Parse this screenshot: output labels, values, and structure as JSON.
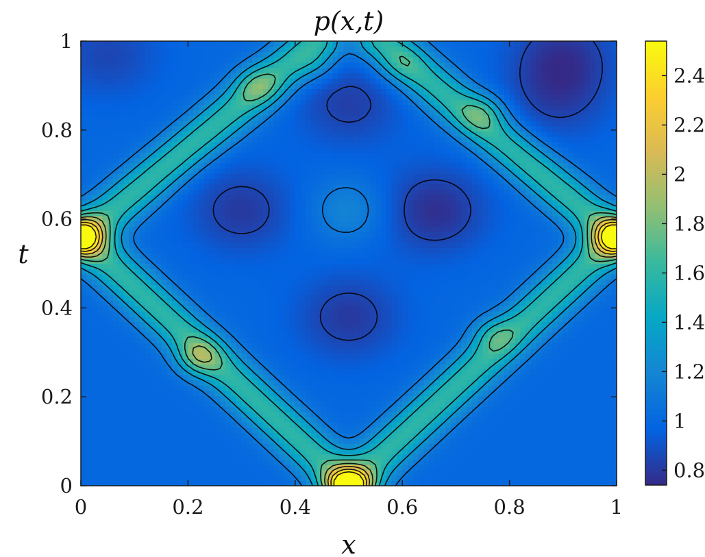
{
  "chart_data": {
    "type": "heatmap",
    "title": "p(x,t)",
    "xlabel": "x",
    "ylabel": "t",
    "xlim": [
      0,
      1
    ],
    "ylim": [
      0,
      1
    ],
    "x_ticks": [
      "0",
      "0.2",
      "0.4",
      "0.6",
      "0.8",
      "1"
    ],
    "x_tick_values": [
      0,
      0.2,
      0.4,
      0.6,
      0.8,
      1
    ],
    "y_ticks": [
      "0",
      "0.2",
      "0.4",
      "0.6",
      "0.8",
      "1"
    ],
    "y_tick_values": [
      0,
      0.2,
      0.4,
      0.6,
      0.8,
      1
    ],
    "colorbar": {
      "min": 0.74,
      "max": 2.54,
      "ticks": [
        "0.8",
        "1",
        "1.2",
        "1.4",
        "1.6",
        "1.8",
        "2",
        "2.2",
        "2.4"
      ],
      "tick_values": [
        0.8,
        1.0,
        1.2,
        1.4,
        1.6,
        1.8,
        2.0,
        2.2,
        2.4
      ],
      "colormap": "parula"
    },
    "contour_levels": [
      0.85,
      1.1,
      1.3,
      1.5,
      1.7,
      1.9,
      2.1,
      2.3,
      2.5
    ],
    "background_value": 1.0,
    "features": [
      {
        "kind": "ridge",
        "from": [
          0.5,
          0.0
        ],
        "to": [
          0.0,
          0.56
        ],
        "peak": 1.6
      },
      {
        "kind": "ridge",
        "from": [
          0.5,
          0.0
        ],
        "to": [
          1.0,
          0.56
        ],
        "peak": 1.6
      },
      {
        "kind": "ridge",
        "from": [
          0.0,
          0.56
        ],
        "to": [
          0.44,
          1.0
        ],
        "peak": 1.6
      },
      {
        "kind": "ridge",
        "from": [
          1.0,
          0.56
        ],
        "to": [
          0.56,
          1.0
        ],
        "peak": 1.6
      },
      {
        "kind": "peak",
        "x": 0.5,
        "t": 0.0,
        "value": 2.54
      },
      {
        "kind": "peak",
        "x": 0.0,
        "t": 0.56,
        "value": 2.45
      },
      {
        "kind": "peak",
        "x": 1.0,
        "t": 0.56,
        "value": 2.45
      },
      {
        "kind": "peak",
        "x": 0.22,
        "t": 0.29,
        "value": 2.0
      },
      {
        "kind": "peak",
        "x": 0.33,
        "t": 0.9,
        "value": 1.85
      },
      {
        "kind": "peak",
        "x": 0.75,
        "t": 0.84,
        "value": 1.85
      },
      {
        "kind": "peak",
        "x": 0.77,
        "t": 0.34,
        "value": 1.8
      },
      {
        "kind": "peak",
        "x": 0.44,
        "t": 0.95,
        "value": 1.7
      },
      {
        "kind": "peak",
        "x": 0.6,
        "t": 0.95,
        "value": 1.7
      },
      {
        "kind": "valley",
        "x": 0.3,
        "t": 0.62,
        "value": 0.8
      },
      {
        "kind": "valley",
        "x": 0.66,
        "t": 0.62,
        "value": 0.76
      },
      {
        "kind": "valley",
        "x": 0.5,
        "t": 0.38,
        "value": 0.8
      },
      {
        "kind": "valley",
        "x": 0.5,
        "t": 0.86,
        "value": 0.82
      },
      {
        "kind": "valley",
        "x": 0.9,
        "t": 0.97,
        "value": 0.8
      },
      {
        "kind": "valley",
        "x": 0.89,
        "t": 0.87,
        "value": 0.85
      },
      {
        "kind": "valley",
        "x": 0.05,
        "t": 0.97,
        "value": 0.85
      },
      {
        "kind": "plateau",
        "x": 0.5,
        "t": 0.62,
        "value": 1.2
      }
    ]
  }
}
